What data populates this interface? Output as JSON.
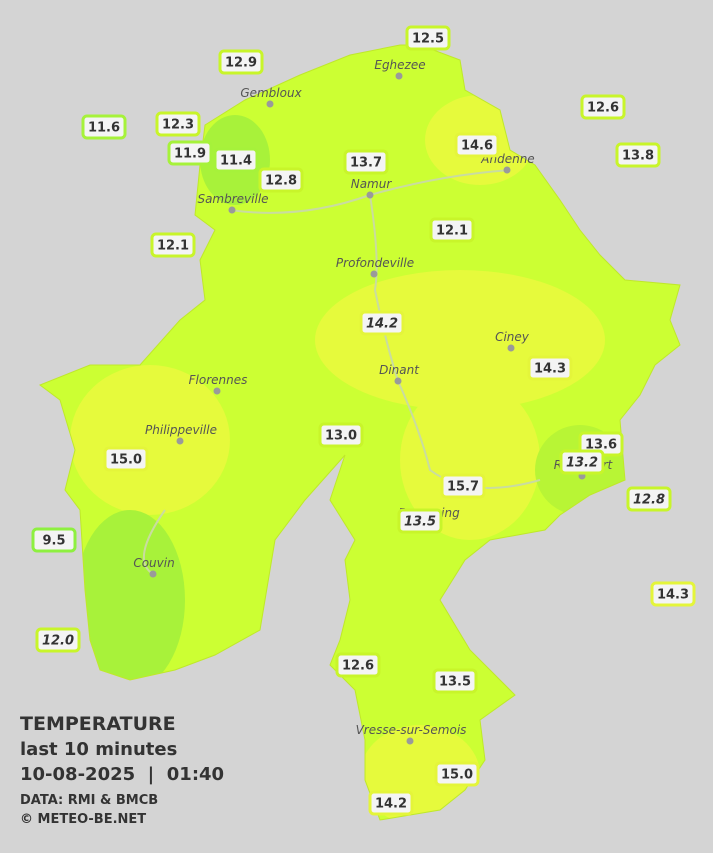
{
  "map": {
    "legend": {
      "title": "TEMPERATURE",
      "period": "last 10 minutes",
      "datetime": "10-08-2025  |  01:40",
      "source": "DATA: RMI & BMCB",
      "credit": "© METEO-BE.NET"
    },
    "towns": [
      "Eghezee",
      "Gembloux",
      "Andenne",
      "Namur",
      "Sambreville",
      "Profondeville",
      "Ciney",
      "Dinant",
      "Florennes",
      "Philippeville",
      "Rochefort",
      "Beauraing",
      "Couvin",
      "Vresse-sur-Semois"
    ],
    "readings": [
      {
        "label": "12.5",
        "italic": false,
        "border": "#c8f52a"
      },
      {
        "label": "12.9",
        "italic": false,
        "border": "#c8f52a"
      },
      {
        "label": "12.6",
        "italic": false,
        "border": "#c8f52a"
      },
      {
        "label": "11.6",
        "italic": false,
        "border": "#a6f23a"
      },
      {
        "label": "12.3",
        "italic": false,
        "border": "#c8f52a"
      },
      {
        "label": "11.9",
        "italic": false,
        "border": "#a6f23a"
      },
      {
        "label": "11.4",
        "italic": false,
        "border": "#a6f23a"
      },
      {
        "label": "14.6",
        "italic": false,
        "border": "#e4f53a"
      },
      {
        "label": "13.7",
        "italic": false,
        "border": "#c8f52a"
      },
      {
        "label": "13.8",
        "italic": false,
        "border": "#c8f52a"
      },
      {
        "label": "12.8",
        "italic": false,
        "border": "#c8f52a"
      },
      {
        "label": "12.1",
        "italic": false,
        "border": "#c8f52a"
      },
      {
        "label": "12.1",
        "italic": false,
        "border": "#c8f52a"
      },
      {
        "label": "14.2",
        "italic": true,
        "border": "#e4f53a"
      },
      {
        "label": "14.3",
        "italic": false,
        "border": "#e4f53a"
      },
      {
        "label": "13.0",
        "italic": false,
        "border": "#c8f52a"
      },
      {
        "label": "13.6",
        "italic": false,
        "border": "#c8f52a"
      },
      {
        "label": "13.2",
        "italic": true,
        "border": "#c8f52a"
      },
      {
        "label": "15.0",
        "italic": false,
        "border": "#e4f53a"
      },
      {
        "label": "15.7",
        "italic": false,
        "border": "#e4f53a"
      },
      {
        "label": "12.8",
        "italic": true,
        "border": "#c8f52a"
      },
      {
        "label": "13.5",
        "italic": true,
        "border": "#c8f52a"
      },
      {
        "label": "9.5",
        "italic": false,
        "border": "#8ef040"
      },
      {
        "label": "14.3",
        "italic": false,
        "border": "#e4f53a"
      },
      {
        "label": "12.0",
        "italic": true,
        "border": "#c8f52a"
      },
      {
        "label": "12.6",
        "italic": false,
        "border": "#c8f52a"
      },
      {
        "label": "13.5",
        "italic": false,
        "border": "#c8f52a"
      },
      {
        "label": "15.0",
        "italic": false,
        "border": "#e4f53a"
      },
      {
        "label": "14.2",
        "italic": false,
        "border": "#e4f53a"
      }
    ]
  }
}
